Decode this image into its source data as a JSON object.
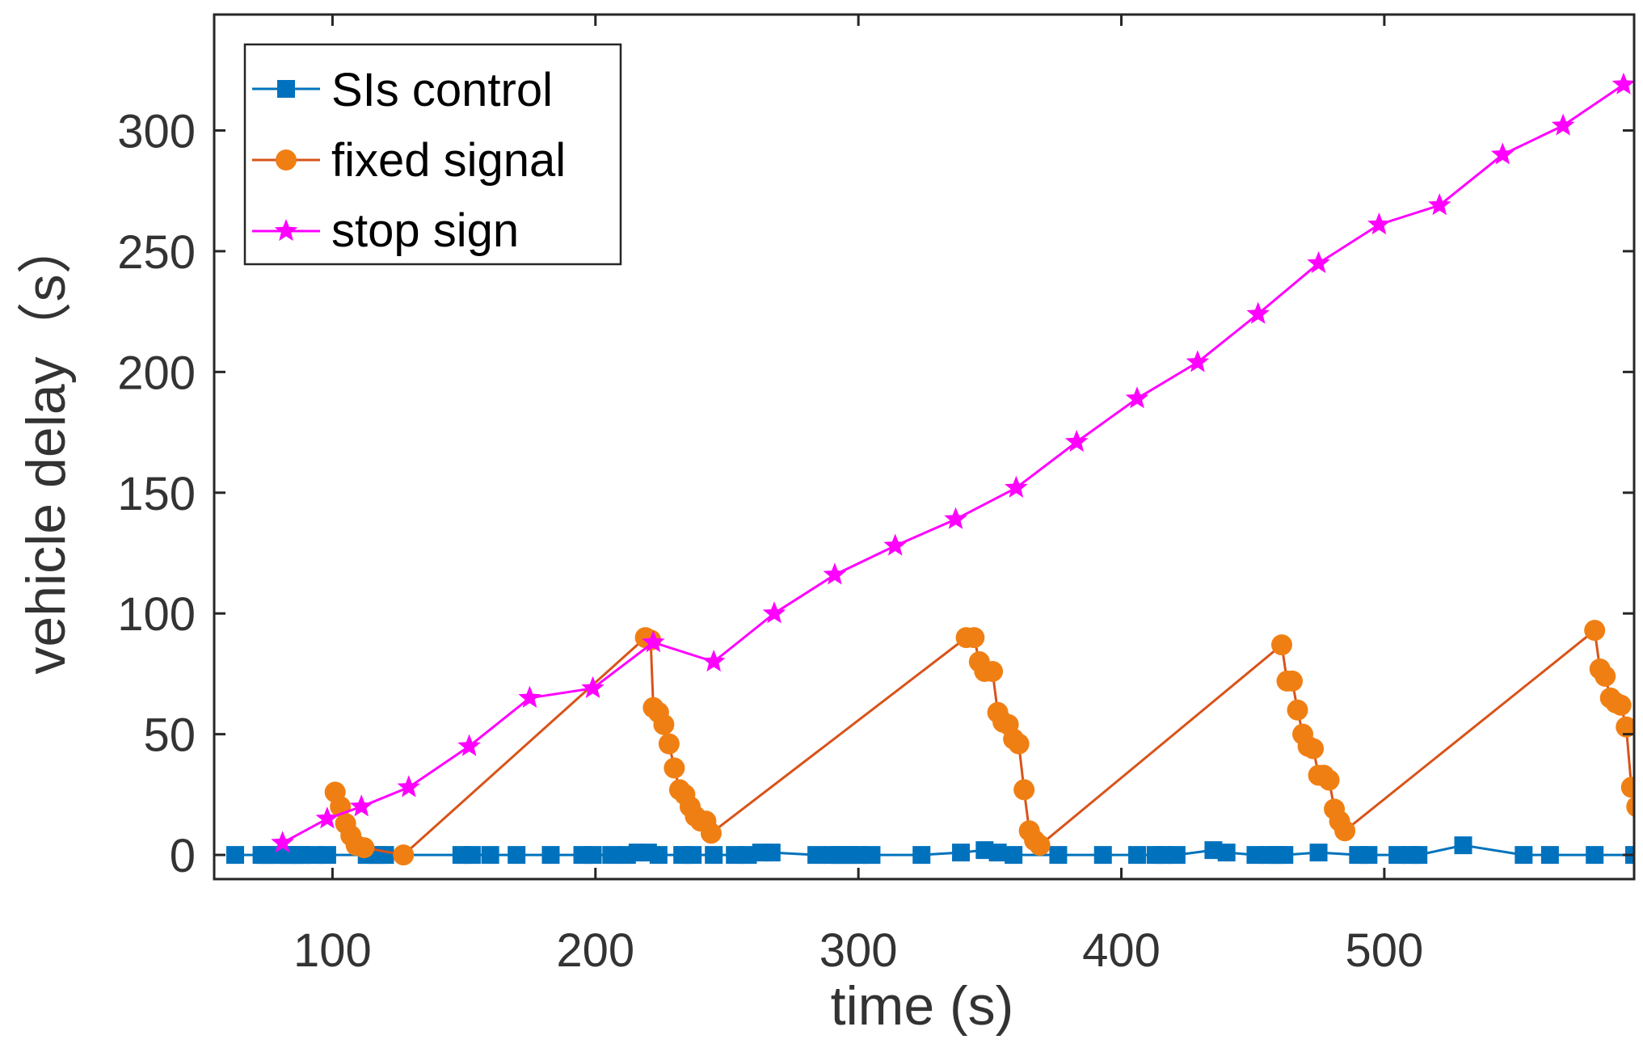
{
  "chart_data": {
    "type": "line",
    "title": "",
    "xlabel": "time (s)",
    "ylabel": "vehicle delay（s）",
    "xlim": [
      55,
      595
    ],
    "ylim": [
      -10,
      348
    ],
    "xticks": [
      100,
      200,
      300,
      400,
      500
    ],
    "yticks": [
      0,
      50,
      100,
      150,
      200,
      250,
      300
    ],
    "grid": false,
    "legend_position": "top-left",
    "series": [
      {
        "name": "SIs control",
        "color": "#0072BD",
        "marker": "square",
        "x": [
          63,
          73,
          75,
          80,
          83,
          86,
          88,
          93,
          98,
          113,
          117,
          120,
          149,
          153,
          160,
          170,
          183,
          195,
          199,
          206,
          212,
          216,
          220,
          224,
          233,
          237,
          245,
          253,
          258,
          263,
          267,
          284,
          290,
          293,
          297,
          300,
          305,
          324,
          339,
          348,
          353,
          359,
          376,
          393,
          406,
          413,
          416,
          421,
          435,
          440,
          451,
          456,
          459,
          462,
          475,
          490,
          494,
          505,
          510,
          513,
          530,
          553,
          563,
          580,
          595
        ],
        "y": [
          0,
          0,
          0,
          0,
          0,
          0,
          0,
          0,
          0,
          0,
          0,
          0,
          0,
          0,
          0,
          0,
          0,
          0,
          0,
          0,
          0,
          1,
          1,
          0,
          0,
          0,
          0,
          0,
          0,
          1,
          1,
          0,
          0,
          0,
          0,
          0,
          0,
          0,
          1,
          2,
          1,
          0,
          0,
          0,
          0,
          0,
          0,
          0,
          2,
          1,
          0,
          0,
          0,
          0,
          1,
          0,
          0,
          0,
          0,
          0,
          4,
          0,
          0,
          0,
          0
        ]
      },
      {
        "name": "fixed signal",
        "color": "#D95319",
        "marker_color": "#F07F13",
        "marker": "circle",
        "x": [
          101,
          103,
          105,
          107,
          109,
          112,
          127,
          219,
          221,
          222,
          224,
          226,
          228,
          230,
          232,
          234,
          236,
          238,
          240,
          242,
          244,
          341,
          344,
          346,
          348,
          351,
          353,
          355,
          357,
          359,
          361,
          363,
          365,
          367,
          369,
          461,
          463,
          465,
          467,
          469,
          471,
          473,
          475,
          477,
          479,
          481,
          483,
          485,
          580,
          582,
          584,
          586,
          588,
          590,
          592,
          594,
          596
        ],
        "y": [
          26,
          20,
          13,
          8,
          4,
          3,
          0,
          90,
          89,
          61,
          59,
          54,
          46,
          36,
          27,
          25,
          20,
          16,
          14,
          14,
          9,
          90,
          90,
          80,
          76,
          76,
          59,
          55,
          54,
          48,
          46,
          27,
          10,
          6,
          4,
          87,
          72,
          72,
          60,
          50,
          45,
          44,
          33,
          33,
          31,
          19,
          14,
          10,
          93,
          77,
          74,
          65,
          63,
          62,
          53,
          28,
          20
        ]
      },
      {
        "name": "stop sign",
        "color": "#FF00FF",
        "marker": "star",
        "x": [
          81,
          98,
          111,
          129,
          152,
          175,
          199,
          222,
          245,
          268,
          291,
          314,
          337,
          360,
          383,
          406,
          429,
          452,
          475,
          498,
          521,
          545,
          568,
          591
        ],
        "y": [
          5,
          15,
          20,
          28,
          45,
          65,
          69,
          88,
          80,
          100,
          116,
          128,
          139,
          152,
          171,
          189,
          204,
          224,
          245,
          261,
          269,
          290,
          302,
          319
        ]
      }
    ]
  }
}
